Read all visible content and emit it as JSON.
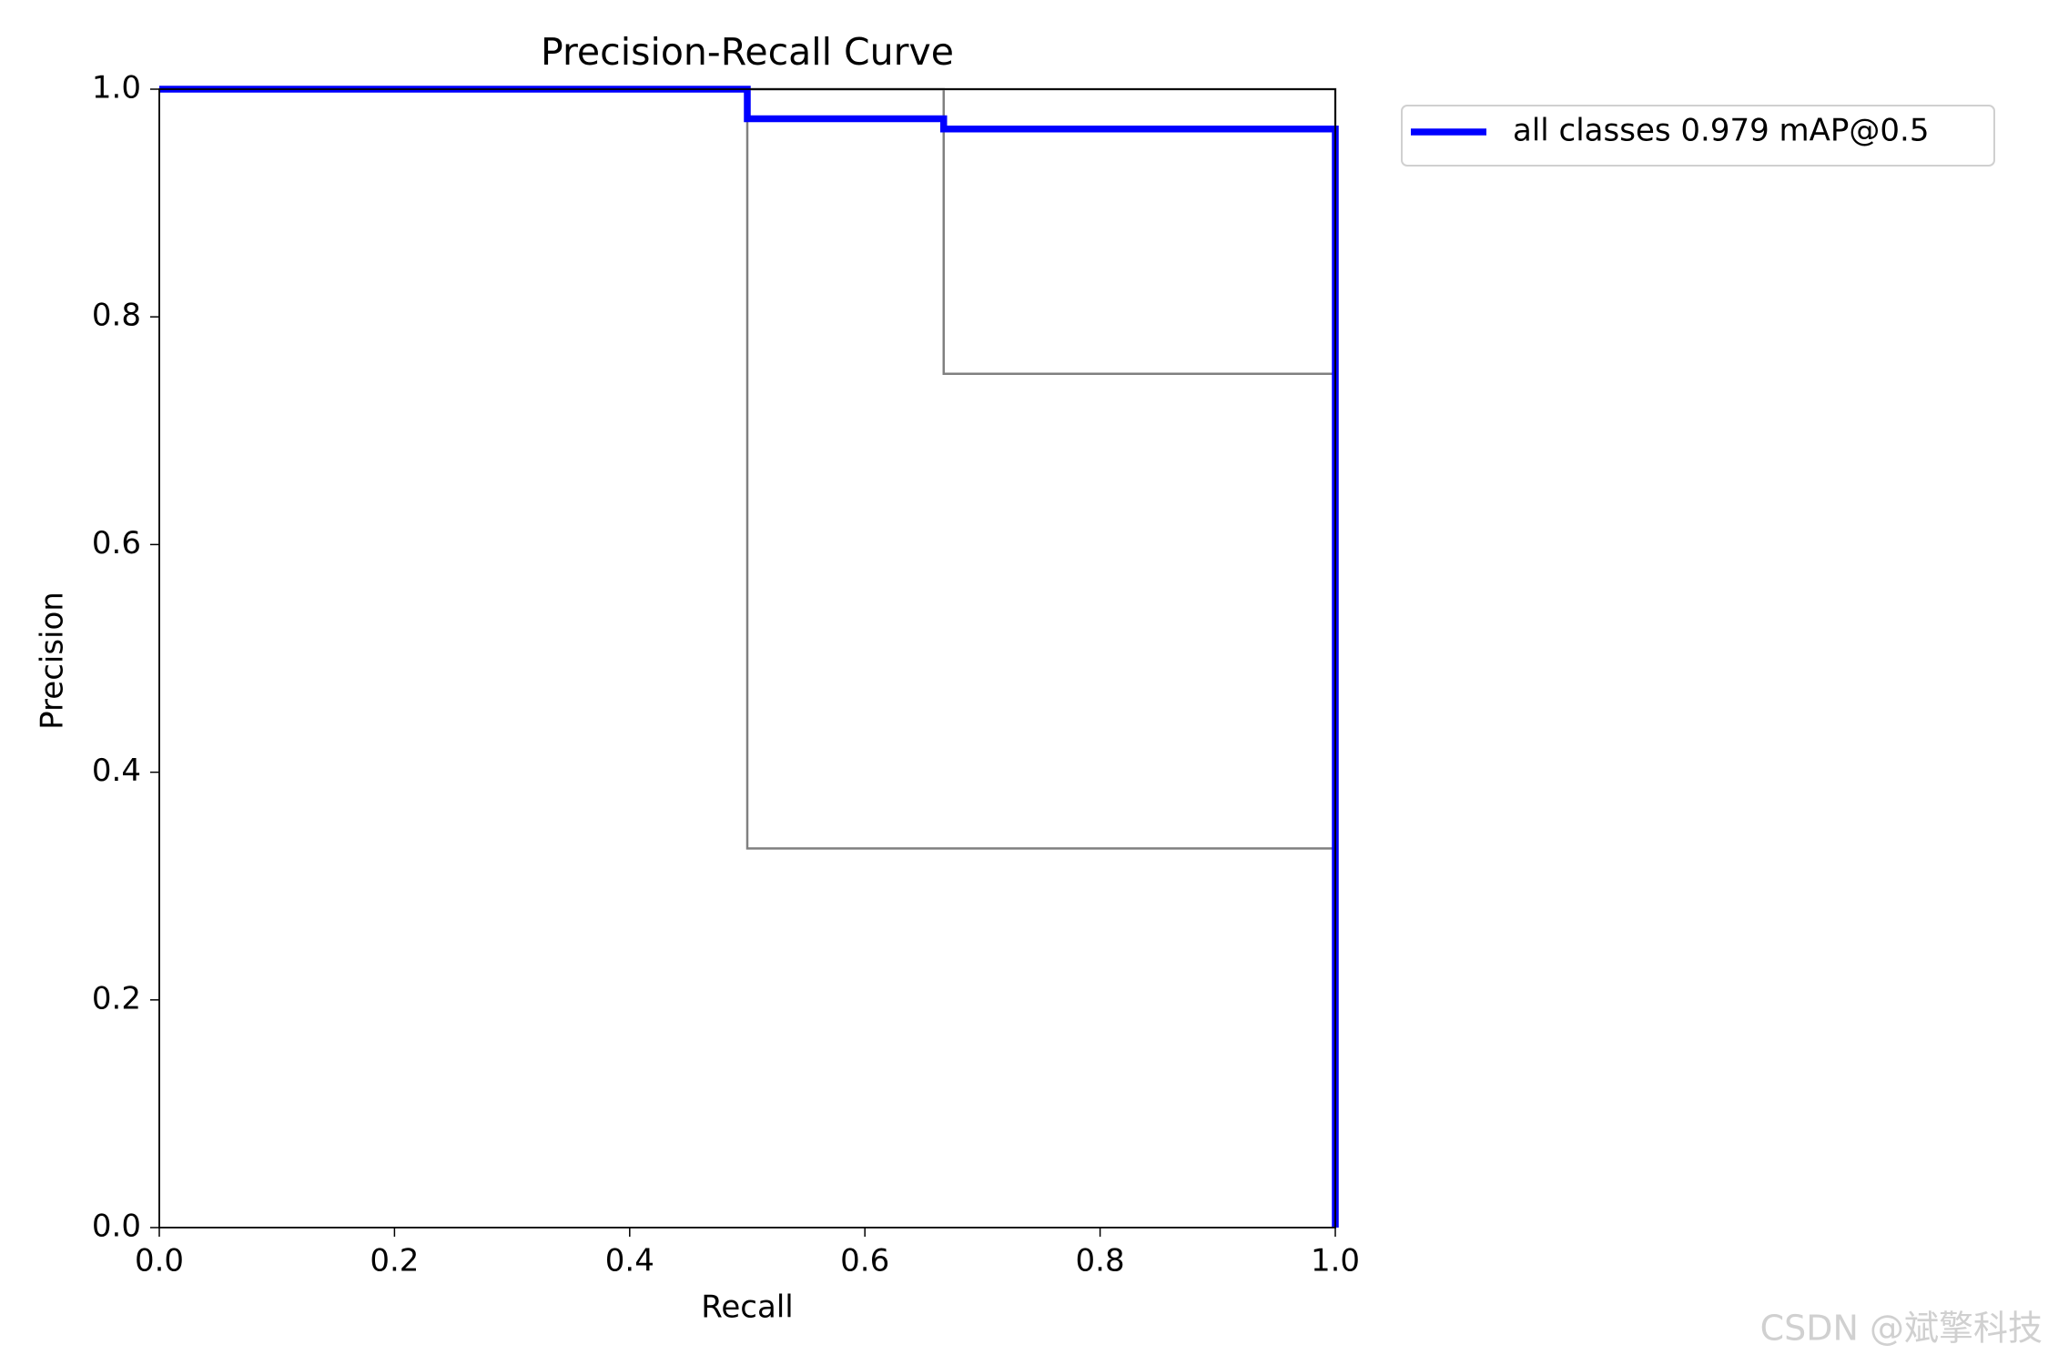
{
  "chart_data": {
    "type": "line",
    "title": "Precision-Recall Curve",
    "x_label": "Recall",
    "y_label": "Precision",
    "xlim": [
      0,
      1
    ],
    "ylim": [
      0,
      1
    ],
    "xticks": [
      {
        "value": 0,
        "label": "0.0"
      },
      0.2,
      0.4,
      0.6,
      0.8,
      {
        "value": 1,
        "label": "1.0"
      }
    ],
    "yticks": [
      {
        "value": 0,
        "label": "0.0"
      },
      0.2,
      0.4,
      0.6,
      0.8,
      {
        "value": 1,
        "label": "1.0"
      }
    ],
    "grid": false,
    "legend_position": "outside-upper-right",
    "series": [
      {
        "color": "#808080",
        "width": 1,
        "x": [
          0,
          0.5,
          0.5,
          1,
          1
        ],
        "values": [
          1,
          1,
          0.333,
          0.333,
          0
        ]
      },
      {
        "color": "#808080",
        "width": 1,
        "x": [
          0,
          0.667,
          0.667,
          1,
          1
        ],
        "values": [
          1,
          1,
          0.75,
          0.75,
          0
        ]
      },
      {
        "color": "#808080",
        "width": 1,
        "x": [
          0,
          1,
          1
        ],
        "values": [
          1,
          1,
          0
        ]
      },
      {
        "name": "all classes 0.979 mAP@0.5",
        "color": "#0000ff",
        "width": 3,
        "x": [
          0,
          0.5,
          0.5,
          0.667,
          0.667,
          1,
          1
        ],
        "values": [
          1,
          1,
          0.974,
          0.974,
          0.965,
          0.965,
          0
        ]
      }
    ]
  },
  "watermark": "CSDN @斌擎科技"
}
